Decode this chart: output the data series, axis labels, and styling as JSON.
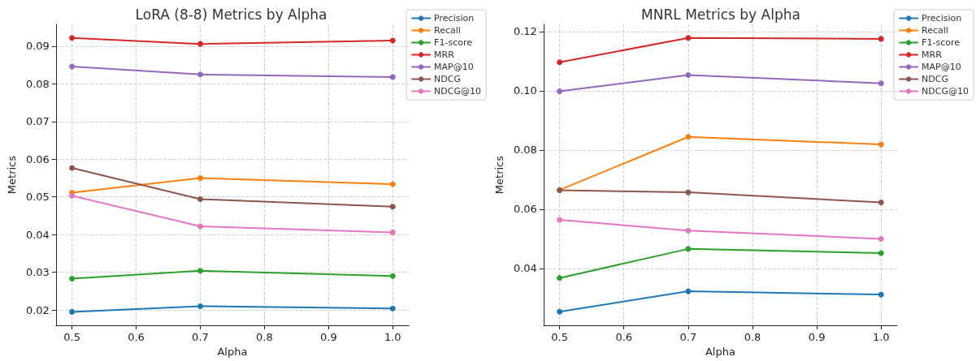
{
  "chart_data": [
    {
      "type": "line",
      "title": "LoRA (8-8) Metrics by Alpha",
      "xlabel": "Alpha",
      "ylabel": "Metrics",
      "x": [
        0.5,
        0.7,
        1.0
      ],
      "series": [
        {
          "name": "Precision",
          "color": "#1f77b4",
          "values": [
            0.0195,
            0.021,
            0.0204
          ]
        },
        {
          "name": "Recall",
          "color": "#ff7f0e",
          "values": [
            0.0511,
            0.055,
            0.0534
          ]
        },
        {
          "name": "F1-score",
          "color": "#2ca02c",
          "values": [
            0.0283,
            0.0304,
            0.029
          ]
        },
        {
          "name": "MRR",
          "color": "#d62728",
          "values": [
            0.0922,
            0.0906,
            0.0915
          ]
        },
        {
          "name": "MAP@10",
          "color": "#9467bd",
          "values": [
            0.0846,
            0.0825,
            0.0818
          ]
        },
        {
          "name": "NDCG",
          "color": "#8c564b",
          "values": [
            0.0577,
            0.0494,
            0.0474
          ]
        },
        {
          "name": "NDCG@10",
          "color": "#e377c2",
          "values": [
            0.0503,
            0.0422,
            0.0406
          ]
        }
      ],
      "xlim": [
        0.475,
        1.025
      ],
      "xticks": [
        0.5,
        0.6,
        0.7,
        0.8,
        0.9,
        {
          "value": 1.0,
          "label": "1.0"
        }
      ],
      "ylim": [
        0.0159,
        0.0958
      ],
      "yticks": [
        0.02,
        0.03,
        0.04,
        0.05,
        0.06,
        0.07,
        0.08,
        0.09
      ],
      "grid": true,
      "legend": "top right",
      "marker": "circle",
      "line_style": "solid"
    },
    {
      "type": "line",
      "title": "MNRL Metrics by Alpha",
      "xlabel": "Alpha",
      "ylabel": "Metrics",
      "x": [
        0.5,
        0.7,
        1.0
      ],
      "series": [
        {
          "name": "Precision",
          "color": "#1f77b4",
          "values": [
            0.0254,
            0.0323,
            0.0312
          ]
        },
        {
          "name": "Recall",
          "color": "#ff7f0e",
          "values": [
            0.0665,
            0.0844,
            0.0819
          ]
        },
        {
          "name": "F1-score",
          "color": "#2ca02c",
          "values": [
            0.0368,
            0.0466,
            0.0452
          ]
        },
        {
          "name": "MRR",
          "color": "#d62728",
          "values": [
            0.1096,
            0.1178,
            0.1175
          ]
        },
        {
          "name": "MAP@10",
          "color": "#9467bd",
          "values": [
            0.0998,
            0.1053,
            0.1025
          ]
        },
        {
          "name": "NDCG",
          "color": "#8c564b",
          "values": [
            0.0664,
            0.0657,
            0.0623
          ]
        },
        {
          "name": "NDCG@10",
          "color": "#e377c2",
          "values": [
            0.0564,
            0.0528,
            0.05
          ]
        }
      ],
      "xlim": [
        0.475,
        1.025
      ],
      "xticks": [
        0.5,
        0.6,
        0.7,
        0.8,
        0.9,
        {
          "value": 1.0,
          "label": "1.0"
        }
      ],
      "ylim": [
        0.0208,
        0.1224
      ],
      "yticks": [
        0.04,
        0.06,
        0.08,
        {
          "value": 0.1,
          "label": "0.10"
        },
        0.12
      ],
      "grid": true,
      "legend": "top right",
      "marker": "circle",
      "line_style": "solid"
    }
  ]
}
